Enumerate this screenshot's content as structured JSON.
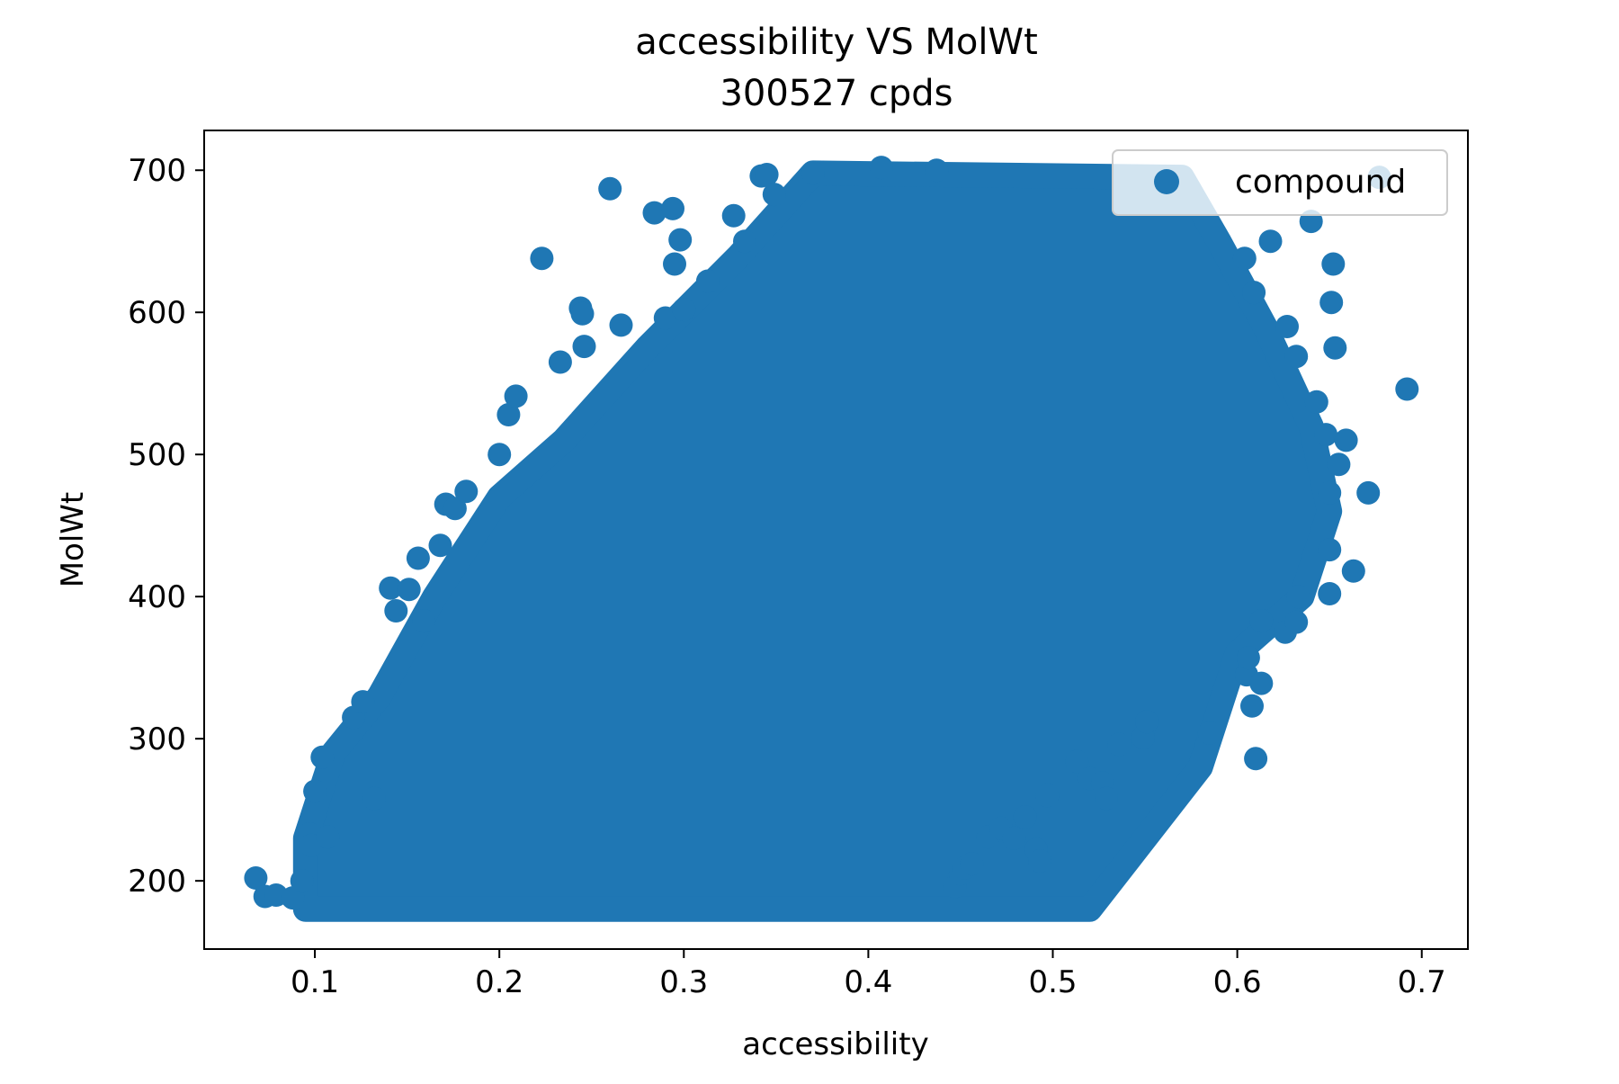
{
  "chart_data": {
    "type": "scatter",
    "title_line1": "accessibility VS MolWt",
    "title_line2": "300527 cpds",
    "xlabel": "accessibility",
    "ylabel": "MolWt",
    "xlim": [
      0.04,
      0.725
    ],
    "ylim": [
      152,
      728
    ],
    "xticks": [
      0.1,
      0.2,
      0.3,
      0.4,
      0.5,
      0.6,
      0.7
    ],
    "xtick_labels": [
      "0.1",
      "0.2",
      "0.3",
      "0.4",
      "0.5",
      "0.6",
      "0.7"
    ],
    "yticks": [
      200,
      300,
      400,
      500,
      600,
      700
    ],
    "ytick_labels": [
      "200",
      "300",
      "400",
      "500",
      "600",
      "700"
    ],
    "grid": false,
    "legend_position": "top-right",
    "series": [
      {
        "name": "compound",
        "color": "#1f77b4",
        "dense_region": [
          [
            0.095,
            180
          ],
          [
            0.52,
            180
          ],
          [
            0.58,
            280
          ],
          [
            0.6,
            360
          ],
          [
            0.635,
            400
          ],
          [
            0.65,
            460
          ],
          [
            0.64,
            520
          ],
          [
            0.615,
            590
          ],
          [
            0.59,
            650
          ],
          [
            0.57,
            695
          ],
          [
            0.37,
            698
          ],
          [
            0.33,
            640
          ],
          [
            0.28,
            575
          ],
          [
            0.235,
            510
          ],
          [
            0.2,
            470
          ],
          [
            0.165,
            400
          ],
          [
            0.135,
            330
          ],
          [
            0.11,
            290
          ],
          [
            0.095,
            230
          ]
        ],
        "points": [
          [
            0.068,
            202
          ],
          [
            0.073,
            189
          ],
          [
            0.079,
            190
          ],
          [
            0.088,
            188
          ],
          [
            0.093,
            200
          ],
          [
            0.097,
            233
          ],
          [
            0.098,
            225
          ],
          [
            0.1,
            263
          ],
          [
            0.104,
            287
          ],
          [
            0.107,
            231
          ],
          [
            0.121,
            315
          ],
          [
            0.126,
            326
          ],
          [
            0.132,
            258
          ],
          [
            0.141,
            406
          ],
          [
            0.144,
            390
          ],
          [
            0.151,
            405
          ],
          [
            0.156,
            427
          ],
          [
            0.159,
            383
          ],
          [
            0.168,
            436
          ],
          [
            0.171,
            465
          ],
          [
            0.176,
            462
          ],
          [
            0.182,
            474
          ],
          [
            0.2,
            500
          ],
          [
            0.205,
            528
          ],
          [
            0.209,
            541
          ],
          [
            0.223,
            638
          ],
          [
            0.233,
            565
          ],
          [
            0.244,
            603
          ],
          [
            0.245,
            599
          ],
          [
            0.246,
            576
          ],
          [
            0.26,
            687
          ],
          [
            0.266,
            591
          ],
          [
            0.284,
            670
          ],
          [
            0.29,
            596
          ],
          [
            0.294,
            673
          ],
          [
            0.295,
            634
          ],
          [
            0.298,
            651
          ],
          [
            0.3,
            602
          ],
          [
            0.313,
            622
          ],
          [
            0.327,
            668
          ],
          [
            0.333,
            650
          ],
          [
            0.342,
            696
          ],
          [
            0.345,
            697
          ],
          [
            0.349,
            683
          ],
          [
            0.37,
            698
          ],
          [
            0.407,
            702
          ],
          [
            0.437,
            700
          ],
          [
            0.447,
            196
          ],
          [
            0.45,
            205
          ],
          [
            0.452,
            209
          ],
          [
            0.456,
            212
          ],
          [
            0.465,
            231
          ],
          [
            0.472,
            237
          ],
          [
            0.479,
            230
          ],
          [
            0.485,
            245
          ],
          [
            0.491,
            222
          ],
          [
            0.493,
            214
          ],
          [
            0.497,
            260
          ],
          [
            0.513,
            284
          ],
          [
            0.52,
            272
          ],
          [
            0.527,
            269
          ],
          [
            0.529,
            258
          ],
          [
            0.536,
            296
          ],
          [
            0.549,
            301
          ],
          [
            0.551,
            312
          ],
          [
            0.585,
            304
          ],
          [
            0.605,
            345
          ],
          [
            0.606,
            357
          ],
          [
            0.608,
            323
          ],
          [
            0.61,
            286
          ],
          [
            0.613,
            339
          ],
          [
            0.613,
            383
          ],
          [
            0.626,
            375
          ],
          [
            0.627,
            590
          ],
          [
            0.632,
            569
          ],
          [
            0.632,
            382
          ],
          [
            0.633,
            400
          ],
          [
            0.643,
            537
          ],
          [
            0.648,
            514
          ],
          [
            0.65,
            402
          ],
          [
            0.65,
            433
          ],
          [
            0.65,
            473
          ],
          [
            0.651,
            607
          ],
          [
            0.652,
            634
          ],
          [
            0.653,
            575
          ],
          [
            0.655,
            493
          ],
          [
            0.659,
            510
          ],
          [
            0.663,
            418
          ],
          [
            0.671,
            473
          ],
          [
            0.692,
            546
          ],
          [
            0.677,
            695
          ],
          [
            0.64,
            664
          ],
          [
            0.618,
            650
          ],
          [
            0.604,
            638
          ],
          [
            0.609,
            614
          ]
        ]
      }
    ]
  }
}
